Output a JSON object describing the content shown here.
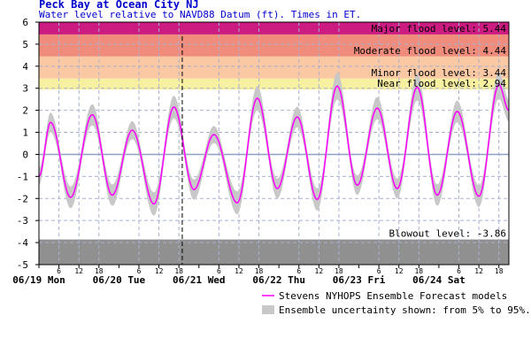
{
  "chart_data": {
    "type": "line",
    "title": "Peck Bay at Ocean City NJ",
    "subtitle": "Water level relative to NAVD88 Datum (ft). Times in ET.",
    "ylim": [
      -5,
      6
    ],
    "y_ticks": [
      "-5",
      "-4",
      "-3",
      "-2",
      "-1",
      "0",
      "1",
      "2",
      "3",
      "4",
      "5",
      "6"
    ],
    "hour_ticks": [
      "6",
      "12",
      "18"
    ],
    "day_labels": [
      "06/19 Mon",
      "06/20 Tue",
      "06/21 Wed",
      "06/22 Thu",
      "06/23 Fri",
      "06/24 Sat"
    ],
    "x_range_hours": [
      0,
      141
    ],
    "now_marker_hours": 43,
    "zero_line": 0,
    "grid": true,
    "bands": [
      {
        "name": "major",
        "from": 5.44,
        "to": 6,
        "color": "#cc1c82"
      },
      {
        "name": "moderate",
        "from": 4.44,
        "to": 5.44,
        "color": "#f08c7c"
      },
      {
        "name": "minor",
        "from": 3.44,
        "to": 4.44,
        "color": "#fbc8a4"
      },
      {
        "name": "near",
        "from": 2.94,
        "to": 3.44,
        "color": "#f7f0a0"
      },
      {
        "name": "blowout",
        "from": -5,
        "to": -3.86,
        "color": "#909090"
      }
    ],
    "band_labels": [
      {
        "text": "Major flood level: 5.44",
        "y": 5.44
      },
      {
        "text": "Moderate flood level: 4.44",
        "y": 4.44
      },
      {
        "text": "Minor flood level: 3.44",
        "y": 3.44
      },
      {
        "text": "Near flood level: 2.94",
        "y": 2.94
      },
      {
        "text": "Blowout level: -3.86",
        "y": -3.86
      }
    ],
    "series": [
      {
        "name": "Stevens NYHOPS Ensemble Forecast models",
        "color": "#ff00ff",
        "x": [
          0,
          3.5,
          9.5,
          16,
          22,
          28,
          34.5,
          40.5,
          46.5,
          52.5,
          59.5,
          65.5,
          71.5,
          77.5,
          83.5,
          89.5,
          95.5,
          101.5,
          107.5,
          113.5,
          119.5,
          125.5,
          132,
          138,
          141
        ],
        "y": [
          -1.0,
          1.45,
          -1.95,
          1.8,
          -1.85,
          1.1,
          -2.25,
          2.15,
          -1.6,
          0.9,
          -2.2,
          2.55,
          -1.55,
          1.7,
          -2.05,
          3.1,
          -1.4,
          2.1,
          -1.55,
          3.05,
          -1.85,
          1.95,
          -1.9,
          3.15,
          2.0
        ]
      }
    ],
    "uncertainty_band": {
      "lower_pct": 5,
      "upper_pct": 95,
      "color": "#c8c8c8",
      "spread_ft": 0.3
    },
    "legend": [
      {
        "kind": "line",
        "text": "Stevens NYHOPS Ensemble Forecast models",
        "color": "#ff00ff"
      },
      {
        "kind": "band",
        "text": "Ensemble uncertainty shown: from 5% to 95%.",
        "color": "#c8c8c8"
      }
    ]
  }
}
